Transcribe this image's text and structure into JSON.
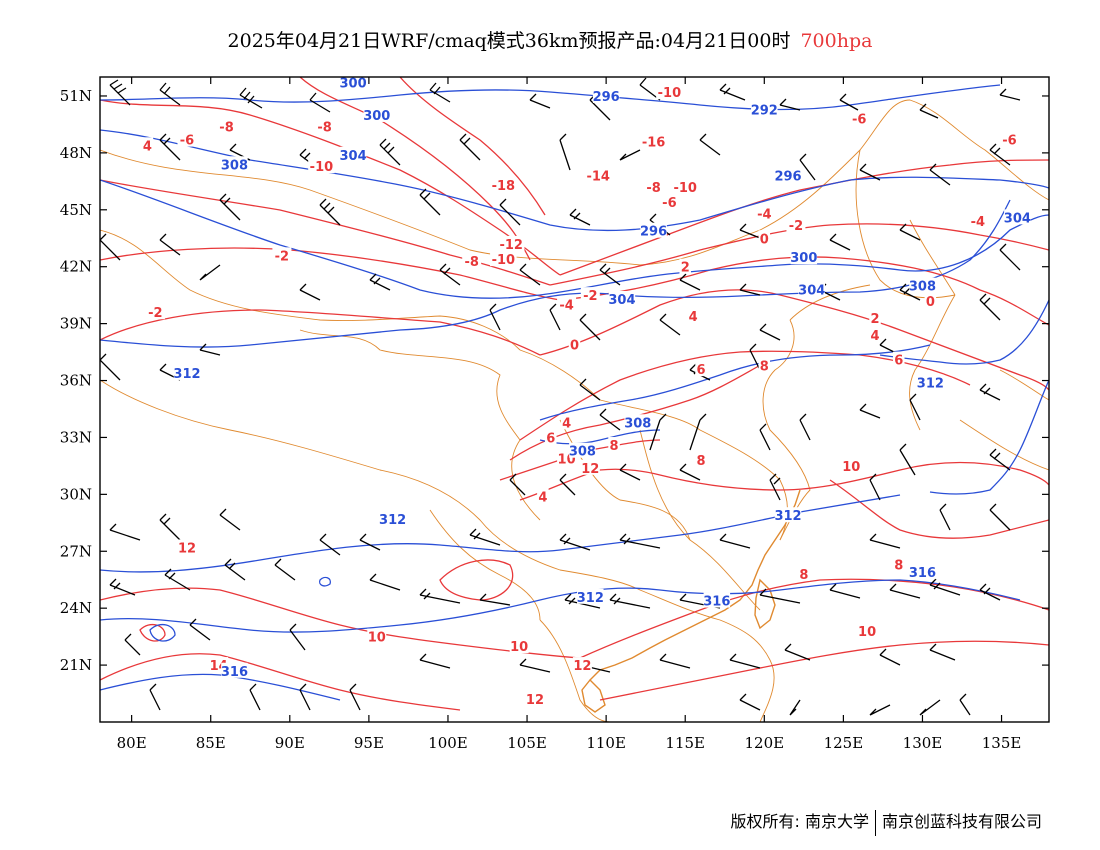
{
  "title": {
    "main": "2025年04月21日WRF/cmaq模式36km预报产品:04月21日00时",
    "level": "700hpa"
  },
  "colors": {
    "temperature": "#e8383a",
    "height": "#2a4fd6",
    "border": "#e08a30",
    "wind": "#000000"
  },
  "axes": {
    "lat_labels": [
      "51N",
      "48N",
      "45N",
      "42N",
      "39N",
      "36N",
      "33N",
      "30N",
      "27N",
      "24N",
      "21N"
    ],
    "lon_labels": [
      "80E",
      "85E",
      "90E",
      "95E",
      "100E",
      "105E",
      "110E",
      "115E",
      "120E",
      "125E",
      "130E",
      "135E"
    ],
    "lon_range": [
      78,
      138
    ],
    "lat_range": [
      18,
      52
    ]
  },
  "contour_labels": {
    "temperature": [
      {
        "text": "-8",
        "lon": 86.0,
        "lat": 49.4
      },
      {
        "text": "-8",
        "lon": 92.2,
        "lat": 49.4
      },
      {
        "text": "-6",
        "lon": 83.5,
        "lat": 48.7
      },
      {
        "text": "-10",
        "lon": 92.0,
        "lat": 47.3
      },
      {
        "text": "-10",
        "lon": 114.0,
        "lat": 51.2
      },
      {
        "text": "-16",
        "lon": 113.0,
        "lat": 48.6
      },
      {
        "text": "-18",
        "lon": 103.5,
        "lat": 46.3
      },
      {
        "text": "-14",
        "lon": 109.5,
        "lat": 46.8
      },
      {
        "text": "-8",
        "lon": 113.0,
        "lat": 46.2
      },
      {
        "text": "-10",
        "lon": 115.0,
        "lat": 46.2
      },
      {
        "text": "-6",
        "lon": 114.0,
        "lat": 45.4
      },
      {
        "text": "-4",
        "lon": 120.0,
        "lat": 44.8
      },
      {
        "text": "-2",
        "lon": 122.0,
        "lat": 44.2
      },
      {
        "text": "0",
        "lon": 120.0,
        "lat": 43.5
      },
      {
        "text": "-12",
        "lon": 104.0,
        "lat": 43.2
      },
      {
        "text": "-10",
        "lon": 103.5,
        "lat": 42.4
      },
      {
        "text": "-8",
        "lon": 101.5,
        "lat": 42.3
      },
      {
        "text": "-4",
        "lon": 107.5,
        "lat": 40.0
      },
      {
        "text": "-2",
        "lon": 109.0,
        "lat": 40.5
      },
      {
        "text": "2",
        "lon": 115.0,
        "lat": 42.0
      },
      {
        "text": "-6",
        "lon": 126.0,
        "lat": 49.8
      },
      {
        "text": "-6",
        "lon": 135.5,
        "lat": 48.7
      },
      {
        "text": "-4",
        "lon": 133.5,
        "lat": 44.4
      },
      {
        "text": "-2",
        "lon": 89.5,
        "lat": 42.6
      },
      {
        "text": "-2",
        "lon": 81.5,
        "lat": 39.6
      },
      {
        "text": "4",
        "lon": 81.0,
        "lat": 48.4
      },
      {
        "text": "0",
        "lon": 130.5,
        "lat": 40.2
      },
      {
        "text": "2",
        "lon": 127.0,
        "lat": 39.3
      },
      {
        "text": "4",
        "lon": 127.0,
        "lat": 38.4
      },
      {
        "text": "6",
        "lon": 128.5,
        "lat": 37.1
      },
      {
        "text": "4",
        "lon": 115.5,
        "lat": 39.4
      },
      {
        "text": "0",
        "lon": 108.0,
        "lat": 37.9
      },
      {
        "text": "6",
        "lon": 116.0,
        "lat": 36.6
      },
      {
        "text": "8",
        "lon": 120.0,
        "lat": 36.8
      },
      {
        "text": "4",
        "lon": 107.5,
        "lat": 33.8
      },
      {
        "text": "6",
        "lon": 106.5,
        "lat": 33.0
      },
      {
        "text": "8",
        "lon": 110.5,
        "lat": 32.6
      },
      {
        "text": "10",
        "lon": 107.5,
        "lat": 31.9
      },
      {
        "text": "12",
        "lon": 109.0,
        "lat": 31.4
      },
      {
        "text": "4",
        "lon": 106.0,
        "lat": 29.9
      },
      {
        "text": "8",
        "lon": 116.0,
        "lat": 31.8
      },
      {
        "text": "10",
        "lon": 125.5,
        "lat": 31.5
      },
      {
        "text": "12",
        "lon": 83.5,
        "lat": 27.2
      },
      {
        "text": "10",
        "lon": 95.5,
        "lat": 22.5
      },
      {
        "text": "10",
        "lon": 104.5,
        "lat": 22.0
      },
      {
        "text": "14",
        "lon": 85.5,
        "lat": 21.0
      },
      {
        "text": "12",
        "lon": 108.5,
        "lat": 21.0
      },
      {
        "text": "12",
        "lon": 105.5,
        "lat": 19.2
      },
      {
        "text": "8",
        "lon": 122.5,
        "lat": 25.8
      },
      {
        "text": "8",
        "lon": 128.5,
        "lat": 26.3
      },
      {
        "text": "10",
        "lon": 126.5,
        "lat": 22.8
      }
    ],
    "height": [
      {
        "text": "300",
        "lon": 94.0,
        "lat": 51.7
      },
      {
        "text": "300",
        "lon": 95.5,
        "lat": 50.0
      },
      {
        "text": "296",
        "lon": 110.0,
        "lat": 51.0
      },
      {
        "text": "292",
        "lon": 120.0,
        "lat": 50.3
      },
      {
        "text": "304",
        "lon": 94.0,
        "lat": 47.9
      },
      {
        "text": "308",
        "lon": 86.5,
        "lat": 47.4
      },
      {
        "text": "296",
        "lon": 121.5,
        "lat": 46.8
      },
      {
        "text": "304",
        "lon": 136.0,
        "lat": 44.6
      },
      {
        "text": "296",
        "lon": 113.0,
        "lat": 43.9
      },
      {
        "text": "300",
        "lon": 122.5,
        "lat": 42.5
      },
      {
        "text": "304",
        "lon": 123.0,
        "lat": 40.8
      },
      {
        "text": "304",
        "lon": 111.0,
        "lat": 40.3
      },
      {
        "text": "308",
        "lon": 130.0,
        "lat": 41.0
      },
      {
        "text": "312",
        "lon": 83.5,
        "lat": 36.4
      },
      {
        "text": "312",
        "lon": 130.5,
        "lat": 35.9
      },
      {
        "text": "308",
        "lon": 112.0,
        "lat": 33.8
      },
      {
        "text": "308",
        "lon": 108.5,
        "lat": 32.3
      },
      {
        "text": "312",
        "lon": 96.5,
        "lat": 28.7
      },
      {
        "text": "312",
        "lon": 121.5,
        "lat": 28.9
      },
      {
        "text": "312",
        "lon": 109.0,
        "lat": 24.6
      },
      {
        "text": "316",
        "lon": 117.0,
        "lat": 24.4
      },
      {
        "text": "316",
        "lon": 130.0,
        "lat": 25.9
      },
      {
        "text": "316",
        "lon": 86.5,
        "lat": 20.7
      }
    ]
  },
  "footer": {
    "left": "版权所有: 南京大学",
    "right": "南京创蓝科技有限公司"
  }
}
